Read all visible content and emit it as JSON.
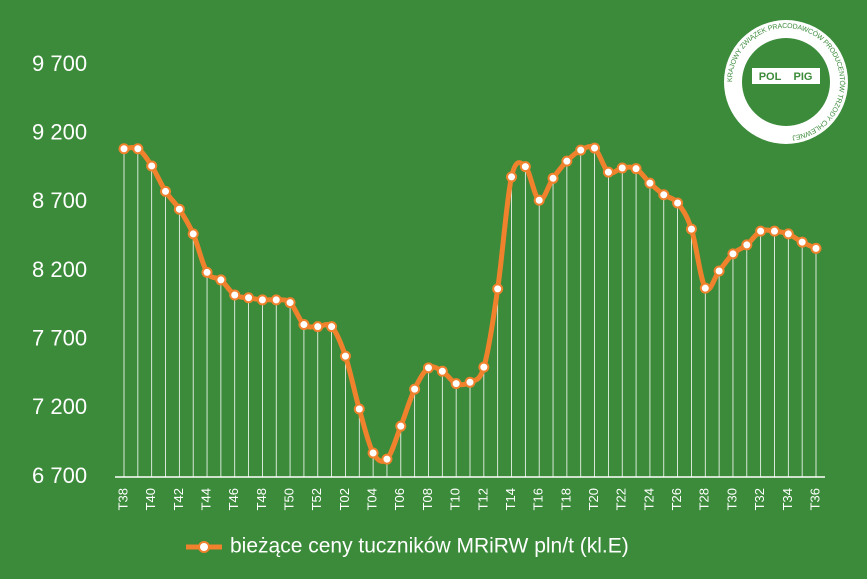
{
  "chart_data": {
    "type": "line",
    "categories": [
      "T38",
      null,
      "T40",
      null,
      "T42",
      null,
      "T44",
      null,
      "T46",
      null,
      "T48",
      null,
      "T50",
      null,
      "T52",
      null,
      "T02",
      null,
      "T04",
      null,
      "T06",
      null,
      "T08",
      null,
      "T10",
      null,
      "T12",
      null,
      "T14",
      null,
      "T16",
      null,
      "T18",
      null,
      "T20",
      null,
      "T22",
      null,
      "T24",
      null,
      "T26",
      null,
      "T28",
      null,
      "T30",
      null,
      "T32",
      null,
      "T34",
      null,
      "T36"
    ],
    "series": [
      {
        "name": "bieżące ceny tuczników MRiRW pln/t (kl.E)",
        "color": "#f0822d",
        "values": [
          9090,
          9090,
          8965,
          8780,
          8650,
          8470,
          8190,
          8135,
          8025,
          8005,
          7990,
          7990,
          7970,
          7810,
          7795,
          7795,
          7580,
          7195,
          6875,
          6830,
          7070,
          7340,
          7495,
          7470,
          7380,
          7390,
          7500,
          8070,
          8885,
          8960,
          8715,
          8875,
          9000,
          9080,
          9095,
          8920,
          8950,
          8945,
          8840,
          8755,
          8695,
          8505,
          8075,
          8200,
          8325,
          8390,
          8490,
          8490,
          8470,
          8410,
          8365
        ]
      }
    ],
    "ylim": [
      6700,
      9700
    ],
    "yticks": [
      {
        "value": 6700,
        "label": "6 700"
      },
      {
        "value": 7200,
        "label": "7 200"
      },
      {
        "value": 7700,
        "label": "7 700"
      },
      {
        "value": 8200,
        "label": "8 200"
      },
      {
        "value": 8700,
        "label": "8 700"
      },
      {
        "value": 9200,
        "label": "9 200"
      },
      {
        "value": 9700,
        "label": "9 700"
      }
    ],
    "grid": false,
    "legend": "bottom"
  },
  "logo": {
    "left": "POL",
    "right": "PIG",
    "ring": "KRAJOWY ZWIĄZEK PRACODAWCÓW PRODUCENTÓW TRZODY CHLEWNEJ"
  }
}
